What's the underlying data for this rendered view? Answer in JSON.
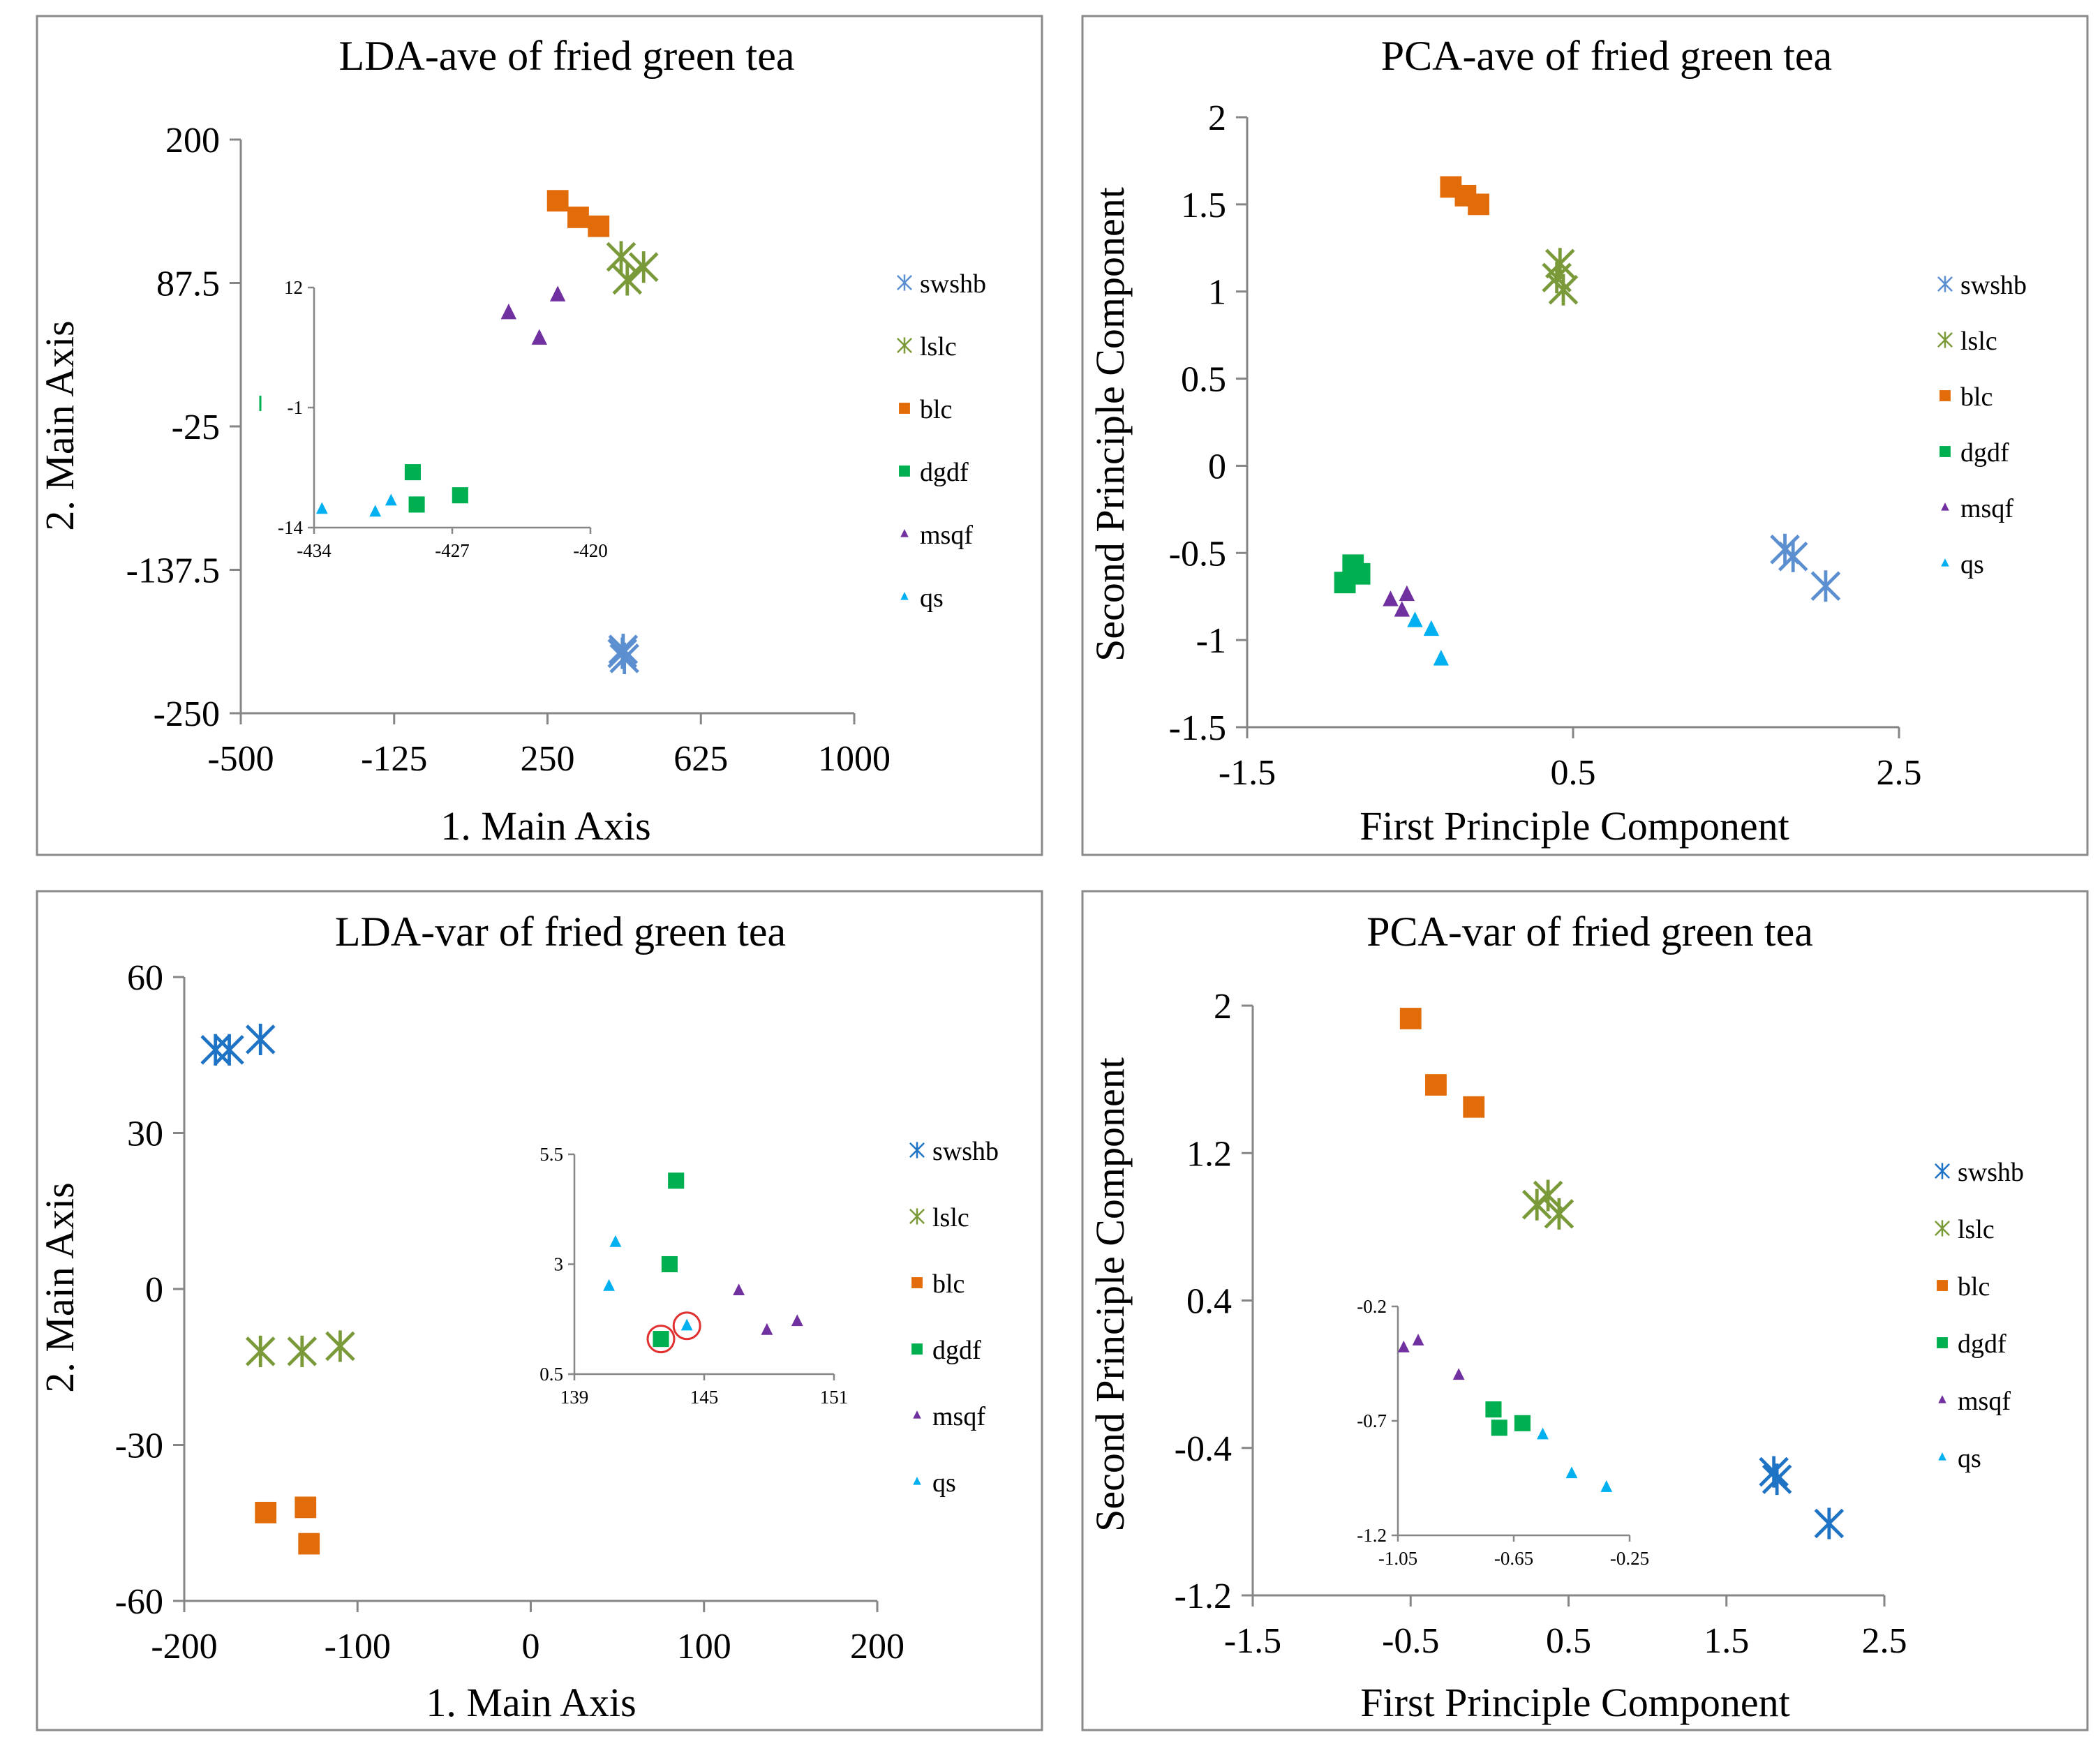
{
  "colors": {
    "swshb": "#5b8fd0",
    "swshb_var": "#1f73c4",
    "lslc": "#7a9a3a",
    "blc": "#e36c0a",
    "dgdf": "#00b050",
    "msqf": "#7030a0",
    "qs": "#00b0f0",
    "highlight": "#e03030"
  },
  "chart_data": [
    {
      "id": "lda-ave",
      "type": "scatter",
      "title": "LDA-ave  of fried green tea",
      "xlabel": "1. Main Axis",
      "ylabel": "2. Main Axis",
      "xlim": [
        -500,
        1000
      ],
      "ylim": [
        -250,
        200
      ],
      "xticks": [
        "-500",
        "-125",
        "250",
        "625",
        "1000"
      ],
      "yticks": [
        "200",
        "87.5",
        "-25",
        "-137.5",
        "-250"
      ],
      "legend": [
        "swshb",
        "lslc",
        "blc",
        "dgdf",
        "msqf",
        "qs"
      ],
      "series": [
        {
          "name": "swshb",
          "points": [
            [
              435,
              -200
            ],
            [
              438,
              -207
            ],
            [
              433,
              -203
            ]
          ]
        },
        {
          "name": "lslc",
          "points": [
            [
              430,
              108
            ],
            [
              445,
              90
            ],
            [
              485,
              100
            ]
          ]
        },
        {
          "name": "blc",
          "points": [
            [
              275,
              152
            ],
            [
              325,
              139
            ],
            [
              375,
              132
            ]
          ]
        },
        {
          "name": "msqf",
          "points": [
            [
              155,
              64
            ],
            [
              230,
              44
            ],
            [
              275,
              78
            ]
          ]
        }
      ],
      "inset": {
        "xlim": [
          -434,
          -420
        ],
        "ylim": [
          -14,
          12
        ],
        "xticks": [
          "-434",
          "-427",
          "-420"
        ],
        "yticks": [
          "12",
          "-1",
          "-14"
        ],
        "series": [
          {
            "name": "dgdf",
            "points": [
              [
                -429.0,
                -8.0
              ],
              [
                -428.8,
                -11.5
              ],
              [
                -426.6,
                -10.5
              ]
            ]
          },
          {
            "name": "qs",
            "points": [
              [
                -433.6,
                -12.0
              ],
              [
                -430.9,
                -12.3
              ],
              [
                -430.1,
                -11.1
              ]
            ]
          }
        ]
      }
    },
    {
      "id": "pca-ave",
      "type": "scatter",
      "title": "PCA-ave  of fried green tea",
      "xlabel": "First Principle Component",
      "ylabel": "Second Principle Component",
      "xlim": [
        -1.5,
        2.5
      ],
      "ylim": [
        -1.5,
        2
      ],
      "xticks": [
        "-1.5",
        "0.5",
        "2.5"
      ],
      "yticks": [
        "2",
        "1.5",
        "1",
        "0.5",
        "0",
        "-0.5",
        "-1",
        "-1.5"
      ],
      "legend": [
        "swshb",
        "lslc",
        "blc",
        "dgdf",
        "msqf",
        "qs"
      ],
      "series": [
        {
          "name": "swshb",
          "points": [
            [
              1.8,
              -0.48
            ],
            [
              1.85,
              -0.52
            ],
            [
              2.05,
              -0.69
            ]
          ]
        },
        {
          "name": "lslc",
          "points": [
            [
              0.4,
              1.08
            ],
            [
              0.42,
              1.16
            ],
            [
              0.44,
              1.01
            ]
          ]
        },
        {
          "name": "blc",
          "points": [
            [
              -0.25,
              1.6
            ],
            [
              -0.16,
              1.55
            ],
            [
              -0.08,
              1.5
            ]
          ]
        },
        {
          "name": "dgdf",
          "points": [
            [
              -0.9,
              -0.67
            ],
            [
              -0.85,
              -0.57
            ],
            [
              -0.81,
              -0.62
            ]
          ]
        },
        {
          "name": "msqf",
          "points": [
            [
              -0.62,
              -0.77
            ],
            [
              -0.55,
              -0.83
            ],
            [
              -0.52,
              -0.74
            ]
          ]
        },
        {
          "name": "qs",
          "points": [
            [
              -0.47,
              -0.89
            ],
            [
              -0.37,
              -0.94
            ],
            [
              -0.31,
              -1.11
            ]
          ]
        }
      ]
    },
    {
      "id": "lda-var",
      "type": "scatter",
      "title": "LDA-var  of fried green tea",
      "xlabel": "1. Main Axis",
      "ylabel": "2. Main Axis",
      "xlim": [
        -200,
        200
      ],
      "ylim": [
        -60,
        60
      ],
      "xticks": [
        "-200",
        "-100",
        "0",
        "100",
        "200"
      ],
      "yticks": [
        "60",
        "30",
        "0",
        "-30",
        "-60"
      ],
      "legend": [
        "swshb",
        "lslc",
        "blc",
        "dgdf",
        "msqf",
        "qs"
      ],
      "series": [
        {
          "name": "swshb",
          "points": [
            [
              -182,
              46
            ],
            [
              -174,
              46
            ],
            [
              -156,
              48
            ]
          ]
        },
        {
          "name": "lslc",
          "points": [
            [
              -156,
              -12
            ],
            [
              -132,
              -12
            ],
            [
              -110,
              -11
            ]
          ]
        },
        {
          "name": "blc",
          "points": [
            [
              -153,
              -43
            ],
            [
              -130,
              -42
            ],
            [
              -128,
              -49
            ]
          ]
        }
      ],
      "inset": {
        "xlim": [
          139,
          151
        ],
        "ylim": [
          0.5,
          5.5
        ],
        "xticks": [
          "139",
          "145",
          "151"
        ],
        "yticks": [
          "5.5",
          "3",
          "0.5"
        ],
        "series": [
          {
            "name": "dgdf",
            "points": [
              [
                143.0,
                1.3
              ],
              [
                143.4,
                3.0
              ],
              [
                143.7,
                4.9
              ]
            ]
          },
          {
            "name": "qs",
            "points": [
              [
                140.6,
                2.5
              ],
              [
                140.9,
                3.5
              ],
              [
                144.2,
                1.6
              ]
            ]
          },
          {
            "name": "msqf",
            "points": [
              [
                146.6,
                2.4
              ],
              [
                147.9,
                1.5
              ],
              [
                149.3,
                1.7
              ]
            ]
          }
        ],
        "highlighted": [
          [
            143.0,
            1.3
          ],
          [
            144.2,
            1.6
          ]
        ]
      }
    },
    {
      "id": "pca-var",
      "type": "scatter",
      "title": "PCA-var  of fried green tea",
      "xlabel": "First Principle  Component",
      "ylabel": "Second Principle  Component",
      "xlim": [
        -1.5,
        2.5
      ],
      "ylim": [
        -1.2,
        2
      ],
      "xticks": [
        "-1.5",
        "-0.5",
        "0.5",
        "1.5",
        "2.5"
      ],
      "yticks": [
        "2",
        "1.2",
        "0.4",
        "-0.4",
        "-1.2"
      ],
      "legend": [
        "swshb",
        "lslc",
        "blc",
        "dgdf",
        "msqf",
        "qs"
      ],
      "series": [
        {
          "name": "swshb",
          "points": [
            [
              1.8,
              -0.53
            ],
            [
              1.82,
              -0.57
            ],
            [
              2.15,
              -0.81
            ]
          ]
        },
        {
          "name": "lslc",
          "points": [
            [
              0.3,
              0.92
            ],
            [
              0.37,
              0.97
            ],
            [
              0.44,
              0.87
            ]
          ]
        },
        {
          "name": "blc",
          "points": [
            [
              -0.5,
              1.93
            ],
            [
              -0.34,
              1.57
            ],
            [
              -0.1,
              1.45
            ]
          ]
        }
      ],
      "inset": {
        "xlim": [
          -1.05,
          -0.25
        ],
        "ylim": [
          -1.2,
          -0.2
        ],
        "xticks": [
          "-1.05",
          "-0.65",
          "-0.25"
        ],
        "yticks": [
          "-0.2",
          "-0.7",
          "-1.2"
        ],
        "series": [
          {
            "name": "msqf",
            "points": [
              [
                -1.03,
                -0.38
              ],
              [
                -0.98,
                -0.35
              ],
              [
                -0.84,
                -0.5
              ]
            ]
          },
          {
            "name": "dgdf",
            "points": [
              [
                -0.72,
                -0.65
              ],
              [
                -0.7,
                -0.73
              ],
              [
                -0.62,
                -0.71
              ]
            ]
          },
          {
            "name": "qs",
            "points": [
              [
                -0.55,
                -0.76
              ],
              [
                -0.45,
                -0.93
              ],
              [
                -0.33,
                -0.99
              ]
            ]
          }
        ]
      }
    }
  ]
}
